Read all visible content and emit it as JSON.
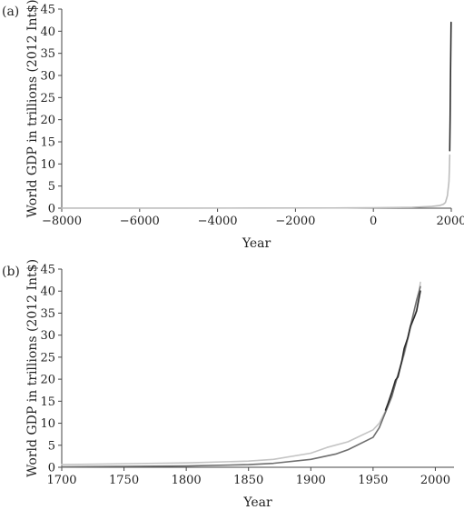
{
  "chart_data": [
    {
      "type": "line",
      "panel_label": "(a)",
      "xlabel": "Year",
      "ylabel": "World GDP in trillions (2012 Int$)",
      "xlim": [
        -8000,
        2000
      ],
      "ylim": [
        0,
        45
      ],
      "x_ticks": [
        -8000,
        -6000,
        -4000,
        -2000,
        0,
        2000
      ],
      "x_tick_labels": [
        "−8000",
        "−6000",
        "−4000",
        "−2000",
        "0",
        "2000"
      ],
      "y_ticks": [
        0,
        5,
        10,
        15,
        20,
        25,
        30,
        35,
        40,
        45
      ],
      "grid": false,
      "series": [
        {
          "color": "#bdbdbd",
          "points": [
            [
              -8000,
              0.01
            ],
            [
              -5000,
              0.02
            ],
            [
              -3000,
              0.03
            ],
            [
              -1000,
              0.05
            ],
            [
              0,
              0.1
            ],
            [
              1000,
              0.2
            ],
            [
              1500,
              0.4
            ],
            [
              1700,
              0.6
            ],
            [
              1800,
              0.9
            ],
            [
              1850,
              1.3
            ],
            [
              1900,
              2.8
            ],
            [
              1940,
              6.0
            ],
            [
              1950,
              8.5
            ],
            [
              1960,
              12.0
            ]
          ]
        },
        {
          "color": "#2b2b2b",
          "points": [
            [
              1960,
              13.0
            ],
            [
              1970,
              20.0
            ],
            [
              1980,
              30.0
            ],
            [
              1990,
              38.0
            ],
            [
              1995,
              42.0
            ]
          ]
        }
      ]
    },
    {
      "type": "line",
      "panel_label": "(b)",
      "xlabel": "Year",
      "ylabel": "World GDP in trillions (2012 Int$)",
      "xlim": [
        1700,
        2015
      ],
      "ylim": [
        0,
        45
      ],
      "x_ticks": [
        1700,
        1750,
        1800,
        1850,
        1900,
        1950,
        2000
      ],
      "x_tick_labels": [
        "1700",
        "1750",
        "1800",
        "1850",
        "1900",
        "1950",
        "2000"
      ],
      "y_ticks": [
        0,
        5,
        10,
        15,
        20,
        25,
        30,
        35,
        40,
        45
      ],
      "grid": false,
      "series": [
        {
          "color": "#c4c4c4",
          "points": [
            [
              1700,
              0.6
            ],
            [
              1750,
              0.8
            ],
            [
              1800,
              1.0
            ],
            [
              1850,
              1.4
            ],
            [
              1870,
              1.8
            ],
            [
              1900,
              3.2
            ],
            [
              1913,
              4.5
            ],
            [
              1930,
              5.8
            ],
            [
              1950,
              8.5
            ],
            [
              1955,
              10.0
            ],
            [
              1960,
              12.8
            ],
            [
              1965,
              17.0
            ],
            [
              1970,
              21.0
            ],
            [
              1975,
              25.5
            ],
            [
              1980,
              31.5
            ],
            [
              1985,
              36.0
            ],
            [
              1988,
              42.0
            ]
          ]
        },
        {
          "color": "#6e6e6e",
          "points": [
            [
              1700,
              0.1
            ],
            [
              1750,
              0.2
            ],
            [
              1800,
              0.3
            ],
            [
              1850,
              0.6
            ],
            [
              1870,
              0.9
            ],
            [
              1900,
              1.8
            ],
            [
              1920,
              3.0
            ],
            [
              1930,
              4.0
            ],
            [
              1950,
              6.8
            ],
            [
              1955,
              9.0
            ],
            [
              1960,
              12.5
            ],
            [
              1965,
              16.0
            ],
            [
              1970,
              21.0
            ],
            [
              1975,
              26.0
            ],
            [
              1980,
              32.0
            ],
            [
              1985,
              38.0
            ],
            [
              1988,
              41.0
            ]
          ]
        },
        {
          "color": "#2b2b2b",
          "points": [
            [
              1960,
              13.0
            ],
            [
              1962,
              14.5
            ],
            [
              1965,
              17.0
            ],
            [
              1968,
              19.8
            ],
            [
              1970,
              20.5
            ],
            [
              1973,
              24.0
            ],
            [
              1975,
              27.0
            ],
            [
              1978,
              29.5
            ],
            [
              1980,
              32.0
            ],
            [
              1983,
              34.0
            ],
            [
              1985,
              35.5
            ],
            [
              1988,
              40.0
            ]
          ]
        }
      ]
    }
  ]
}
